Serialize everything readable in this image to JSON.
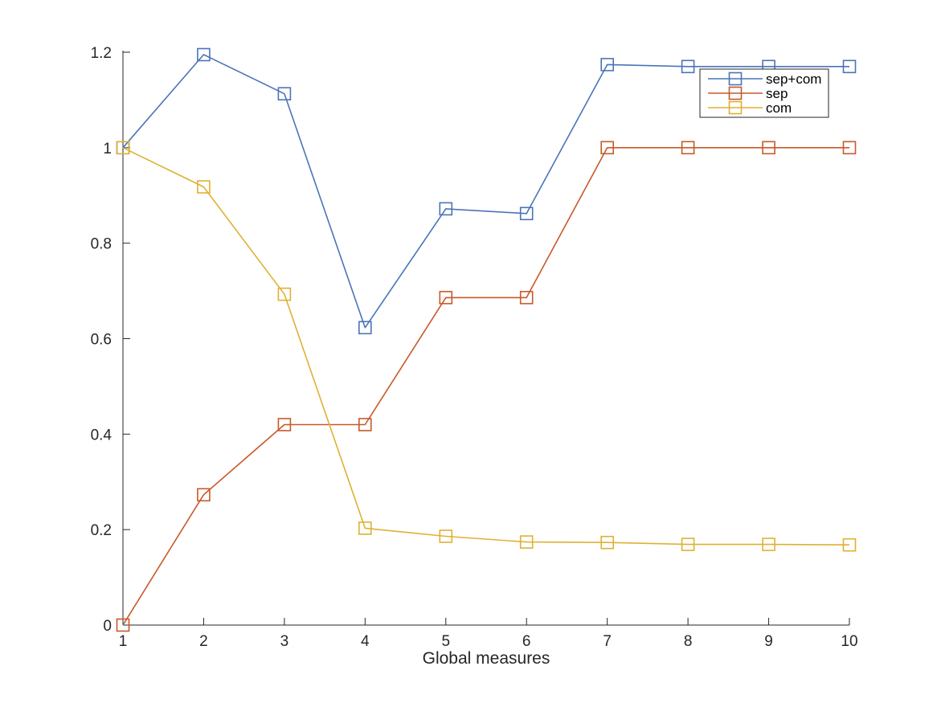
{
  "chart_data": {
    "type": "line",
    "title": "",
    "xlabel": "Global measures",
    "ylabel": "",
    "x": [
      1,
      2,
      3,
      4,
      5,
      6,
      7,
      8,
      9,
      10
    ],
    "xlim": [
      1,
      10
    ],
    "ylim": [
      0,
      1.2
    ],
    "xticks": [
      "1",
      "2",
      "3",
      "4",
      "5",
      "6",
      "7",
      "8",
      "9",
      "10"
    ],
    "yticks": [
      "0",
      "0.2",
      "0.4",
      "0.6",
      "0.8",
      "1",
      "1.2"
    ],
    "grid": false,
    "legend_position": "top-right",
    "marker": "square",
    "series": [
      {
        "name": "sep+com",
        "color": "#4a74b8",
        "values": [
          1.0,
          1.195,
          1.113,
          0.623,
          0.872,
          0.862,
          1.174,
          1.17,
          1.17,
          1.17
        ]
      },
      {
        "name": "sep",
        "color": "#c8592a",
        "values": [
          0.0,
          0.273,
          0.42,
          0.42,
          0.686,
          0.686,
          1.0,
          1.0,
          1.0,
          1.0
        ]
      },
      {
        "name": "com",
        "color": "#e0b034",
        "values": [
          1.0,
          0.918,
          0.693,
          0.203,
          0.186,
          0.174,
          0.173,
          0.169,
          0.169,
          0.168
        ]
      }
    ]
  }
}
